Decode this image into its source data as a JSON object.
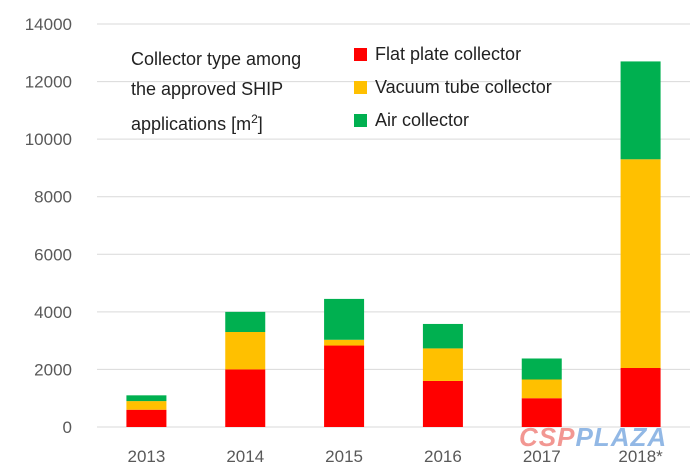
{
  "chart_data": {
    "type": "bar",
    "stacked": true,
    "title_lines": [
      "Collector type among",
      "the approved SHIP",
      "applications [m"
    ],
    "title_superscript": "2",
    "title_suffix": "]",
    "categories": [
      "2013",
      "2014",
      "2015",
      "2016",
      "2017",
      "2018*"
    ],
    "series": [
      {
        "name": "Flat plate collector",
        "color": "#ff0000",
        "values": [
          600,
          2000,
          2830,
          1600,
          1000,
          2050
        ]
      },
      {
        "name": "Vacuum tube collector",
        "color": "#ffc000",
        "values": [
          300,
          1300,
          200,
          1130,
          650,
          7250
        ]
      },
      {
        "name": "Air collector",
        "color": "#00b050",
        "values": [
          200,
          700,
          1420,
          850,
          730,
          3400
        ]
      }
    ],
    "y_ticks": [
      "0",
      "2000",
      "4000",
      "6000",
      "8000",
      "10000",
      "12000",
      "14000"
    ],
    "ylim": [
      0,
      14000
    ],
    "grid": true,
    "gridline_color": "#d9d9d9",
    "legend_position": "top-right"
  },
  "watermark": {
    "part1": "CSP",
    "part2": "PLAZA"
  }
}
